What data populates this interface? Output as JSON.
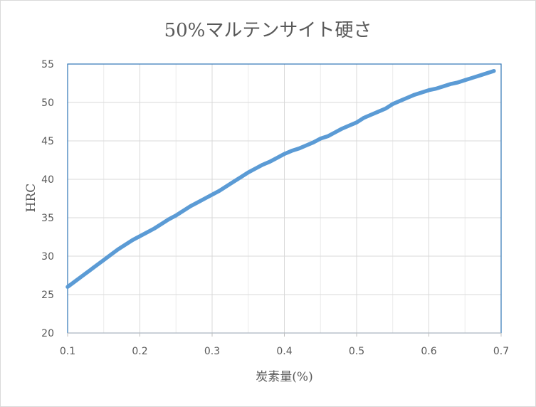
{
  "chart_data": {
    "type": "line",
    "title": "50%マルテンサイト硬さ",
    "xlabel": "炭素量(%)",
    "ylabel": "HRC",
    "xlim": [
      0.1,
      0.7
    ],
    "ylim": [
      20,
      55
    ],
    "xticks": [
      "0.1",
      "0.2",
      "0.3",
      "0.4",
      "0.5",
      "0.6",
      "0.7"
    ],
    "yticks": [
      "20",
      "25",
      "30",
      "35",
      "40",
      "45",
      "50",
      "55"
    ],
    "grid": true,
    "series": [
      {
        "color": "#5b9bd5",
        "x": [
          0.1,
          0.11,
          0.12,
          0.13,
          0.14,
          0.15,
          0.16,
          0.17,
          0.18,
          0.19,
          0.2,
          0.21,
          0.22,
          0.23,
          0.24,
          0.25,
          0.26,
          0.27,
          0.28,
          0.29,
          0.3,
          0.31,
          0.32,
          0.33,
          0.34,
          0.35,
          0.36,
          0.37,
          0.38,
          0.39,
          0.4,
          0.41,
          0.42,
          0.43,
          0.44,
          0.45,
          0.46,
          0.47,
          0.48,
          0.49,
          0.5,
          0.51,
          0.52,
          0.53,
          0.54,
          0.55,
          0.56,
          0.57,
          0.58,
          0.59,
          0.6,
          0.61,
          0.62,
          0.63,
          0.64,
          0.65,
          0.66,
          0.67,
          0.68,
          0.69
        ],
        "y": [
          26.0,
          26.7,
          27.4,
          28.1,
          28.8,
          29.5,
          30.2,
          30.9,
          31.5,
          32.1,
          32.6,
          33.1,
          33.6,
          34.2,
          34.8,
          35.3,
          35.9,
          36.5,
          37.0,
          37.5,
          38.0,
          38.5,
          39.1,
          39.7,
          40.3,
          40.9,
          41.4,
          41.9,
          42.3,
          42.8,
          43.3,
          43.7,
          44.0,
          44.4,
          44.8,
          45.3,
          45.6,
          46.1,
          46.6,
          47.0,
          47.4,
          48.0,
          48.4,
          48.8,
          49.2,
          49.8,
          50.2,
          50.6,
          51.0,
          51.3,
          51.6,
          51.8,
          52.1,
          52.4,
          52.6,
          52.9,
          53.2,
          53.5,
          53.8,
          54.1
        ]
      }
    ]
  }
}
